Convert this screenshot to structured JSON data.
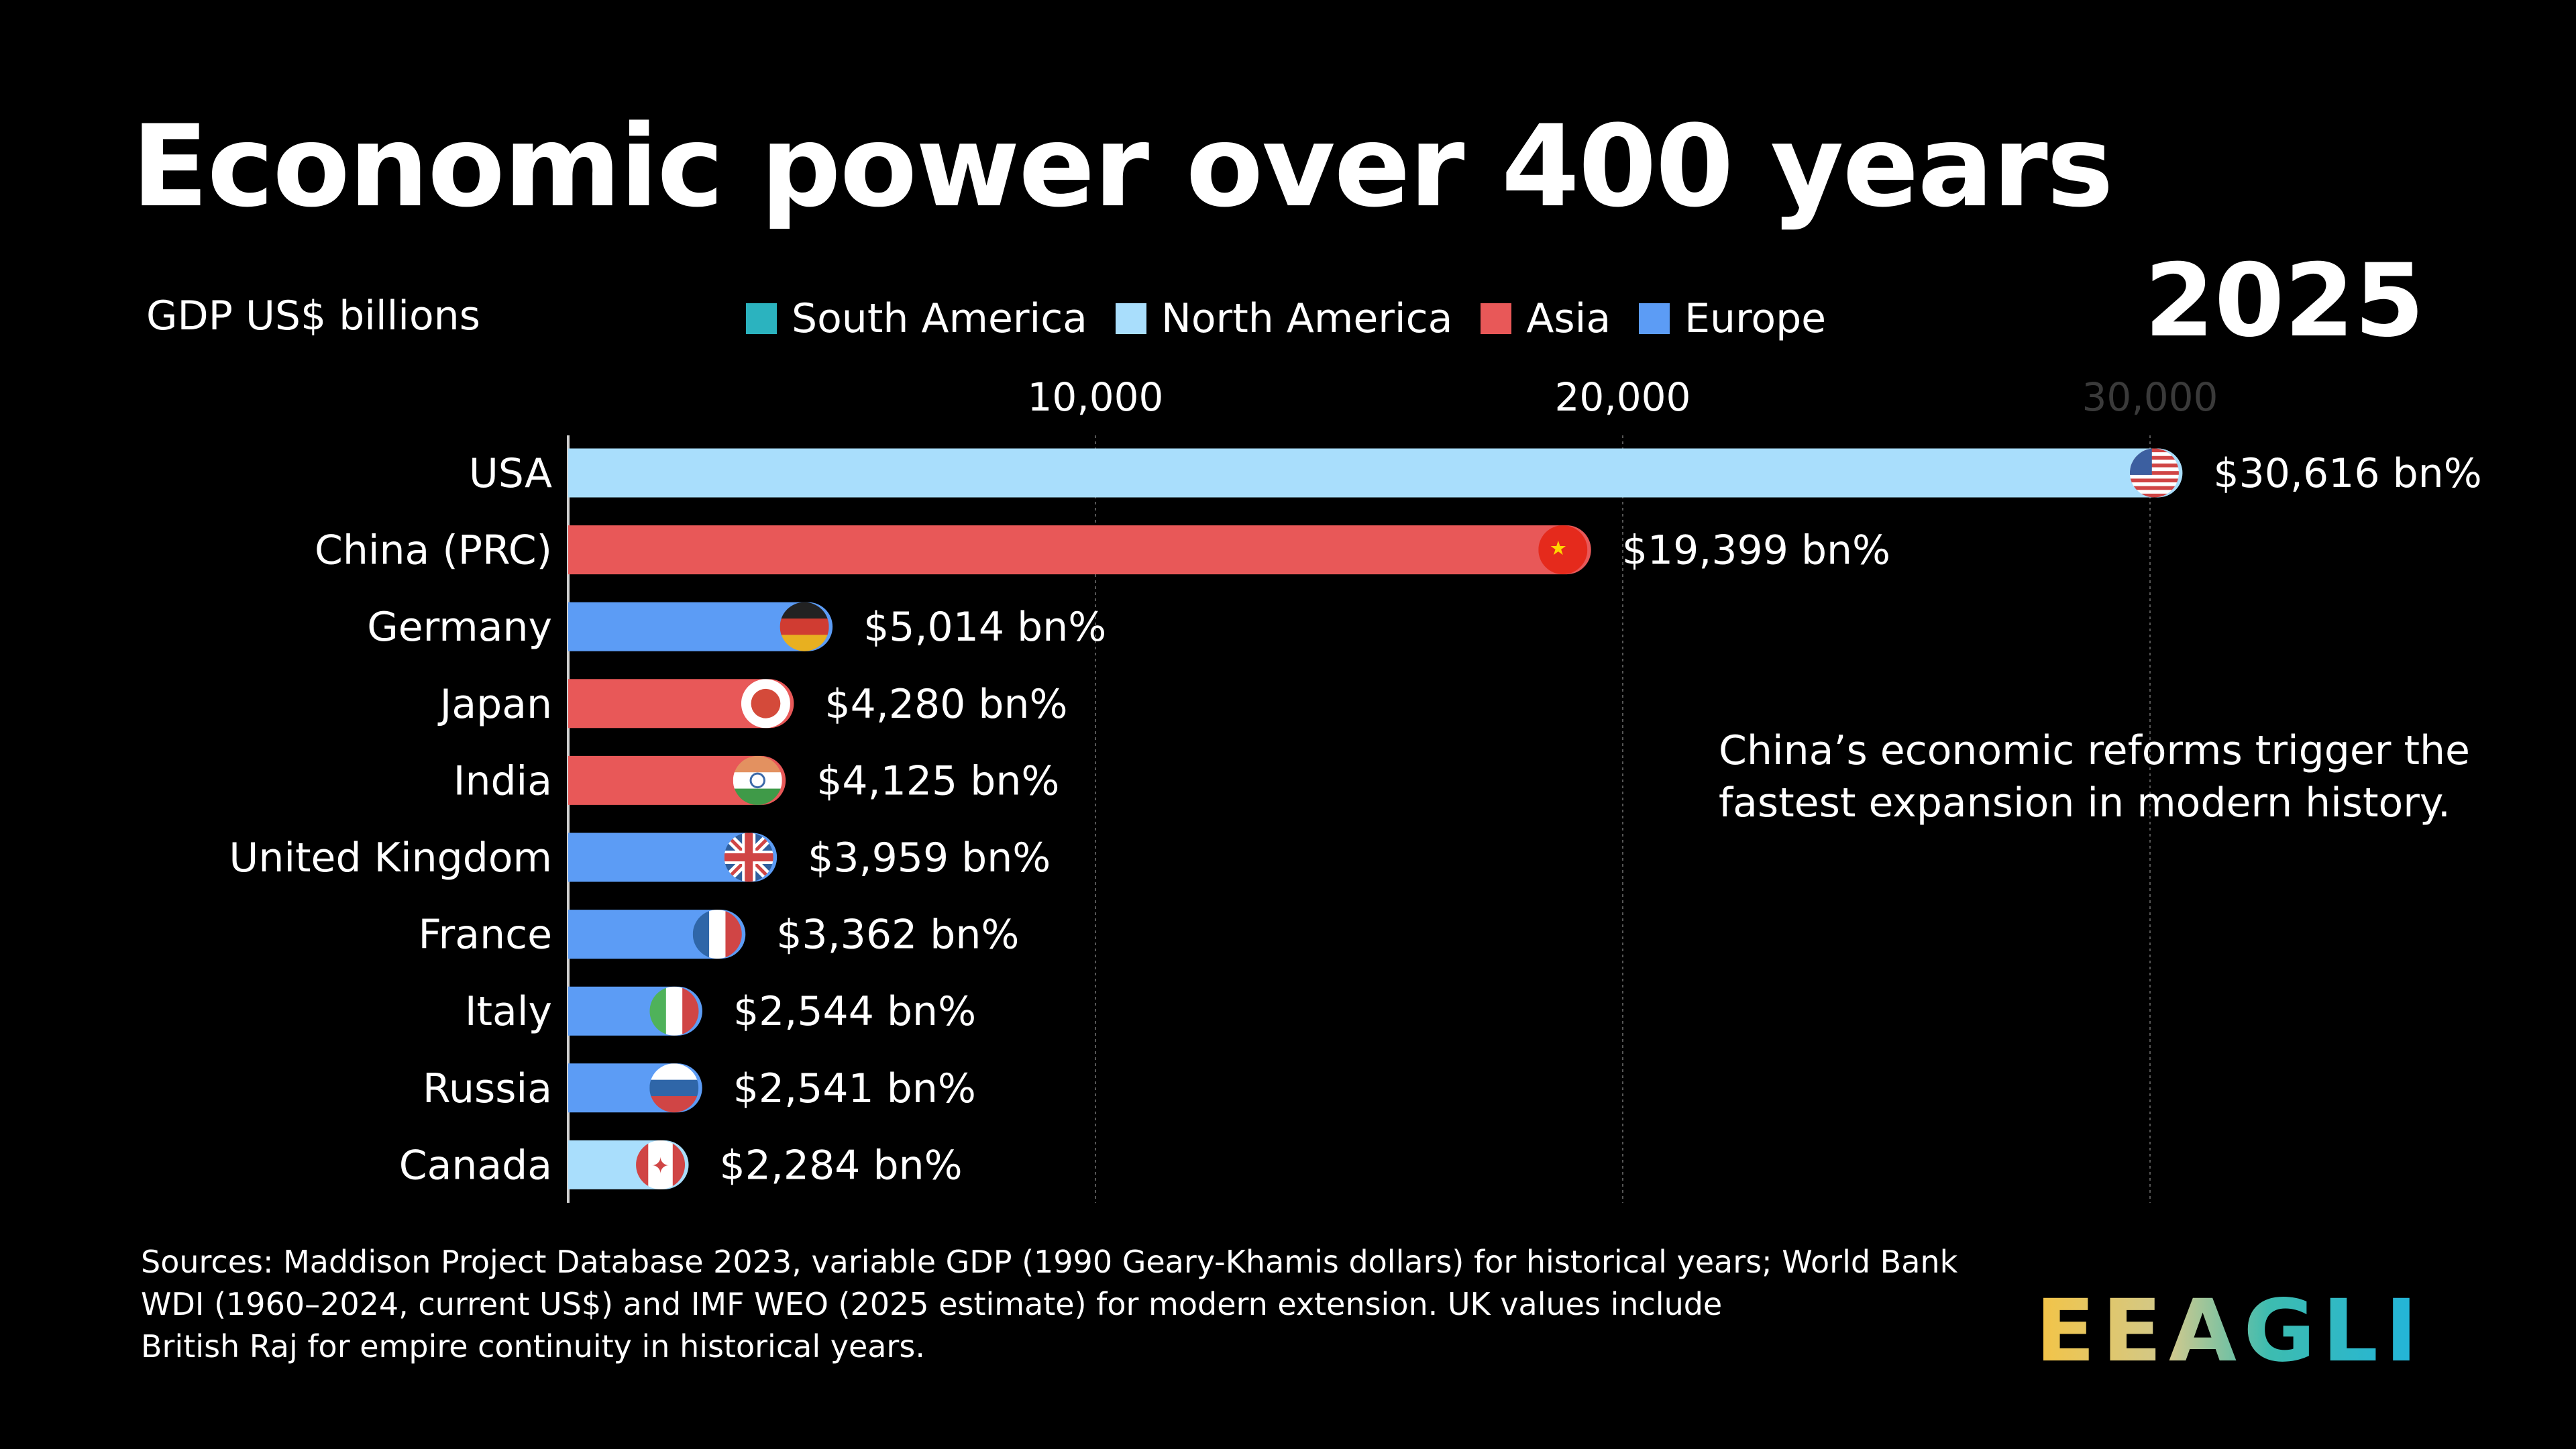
{
  "title": "Economic power over 400 years",
  "year": "2025",
  "unit_label": "GDP US$ billions",
  "legend": [
    {
      "label": "South America",
      "color": "#2bb3bf"
    },
    {
      "label": "North America",
      "color": "#a9defc"
    },
    {
      "label": "Asia",
      "color": "#e85858"
    },
    {
      "label": "Europe",
      "color": "#5c9cf5"
    }
  ],
  "annotation": [
    "China’s economic reforms trigger the",
    "fastest expansion in modern history."
  ],
  "sources": [
    "Sources: Maddison Project Database 2023, variable GDP (1990 Geary-Khamis dollars) for historical years; World Bank",
    "WDI (1960–2024, current US$) and IMF WEO (2025 estimate) for modern extension. UK values include",
    "British Raj for empire continuity in historical years."
  ],
  "logo_text": "EEAGLI",
  "chart_data": {
    "type": "bar",
    "orientation": "horizontal",
    "title": "Economic power over 400 years",
    "xlabel": "GDP US$ billions",
    "xlim": [
      0,
      30000
    ],
    "x_ticks": [
      {
        "value": 10000,
        "label": "10,000"
      },
      {
        "value": 20000,
        "label": "20,000"
      },
      {
        "value": 30000,
        "label": "30,000"
      }
    ],
    "grid": true,
    "legend_position": "top",
    "categories": [
      "USA",
      "China (PRC)",
      "Germany",
      "Japan",
      "India",
      "United Kingdom",
      "France",
      "Italy",
      "Russia",
      "Canada"
    ],
    "values": [
      30616,
      19399,
      5014,
      4280,
      4125,
      3959,
      3362,
      2544,
      2541,
      2284
    ],
    "value_labels": [
      "$30,616 bn%",
      "$19,399 bn%",
      "$5,014 bn%",
      "$4,280 bn%",
      "$4,125 bn%",
      "$3,959 bn%",
      "$3,362 bn%",
      "$2,544 bn%",
      "$2,541 bn%",
      "$2,284 bn%"
    ],
    "regions": [
      "North America",
      "Asia",
      "Europe",
      "Asia",
      "Asia",
      "Europe",
      "Europe",
      "Europe",
      "Europe",
      "North America"
    ],
    "flags": [
      "us-flag",
      "cn-flag",
      "de-flag",
      "jp-flag",
      "in-flag",
      "gb-flag",
      "fr-flag",
      "it-flag",
      "ru-flag",
      "ca-flag"
    ]
  }
}
